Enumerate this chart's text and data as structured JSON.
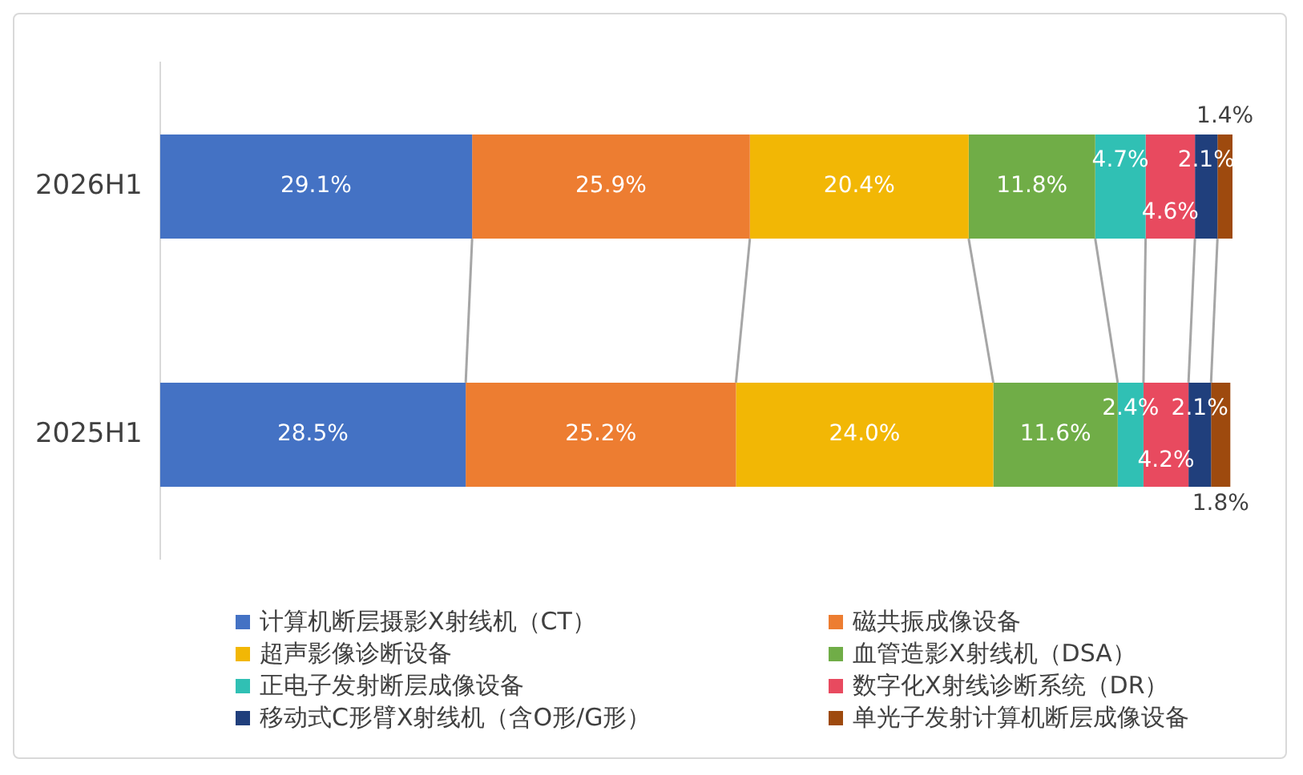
{
  "chart_data": {
    "type": "bar",
    "orientation": "horizontal",
    "stacked": true,
    "legend": "bottom",
    "tick_labels": "y",
    "categories": [
      "2026H1",
      "2025H1"
    ],
    "series": [
      {
        "name": "计算机断层摄影X射线机（CT）",
        "color": "#4472c4",
        "values": [
          29.1,
          28.5
        ],
        "value_labels": [
          "29.1%",
          "28.5%"
        ]
      },
      {
        "name": "磁共振成像设备",
        "color": "#ed7d31",
        "values": [
          25.9,
          25.2
        ],
        "value_labels": [
          "25.9%",
          "25.2%"
        ]
      },
      {
        "name": "超声影像诊断设备",
        "color": "#f2b705",
        "values": [
          20.4,
          24.0
        ],
        "value_labels": [
          "20.4%",
          "24.0%"
        ]
      },
      {
        "name": "血管造影X射线机（DSA）",
        "color": "#70ad47",
        "values": [
          11.8,
          11.6
        ],
        "value_labels": [
          "11.8%",
          "11.6%"
        ]
      },
      {
        "name": "正电子发射断层成像设备",
        "color": "#30c0b4",
        "values": [
          4.7,
          2.4
        ],
        "value_labels": [
          "4.7%",
          "2.4%"
        ]
      },
      {
        "name": "数字化X射线诊断系统（DR）",
        "color": "#e84a5f",
        "values": [
          4.6,
          4.2
        ],
        "value_labels": [
          "4.6%",
          "4.2%"
        ]
      },
      {
        "name": "移动式C形臂X射线机（含O形/G形）",
        "color": "#203f7c",
        "values": [
          2.1,
          2.1
        ],
        "value_labels": [
          "2.1%",
          "2.1%"
        ]
      },
      {
        "name": "单光子发射计算机断层成像设备",
        "color": "#9e4a0e",
        "values": [
          1.4,
          1.8
        ],
        "value_labels": [
          "1.4%",
          "1.8%"
        ]
      }
    ]
  }
}
